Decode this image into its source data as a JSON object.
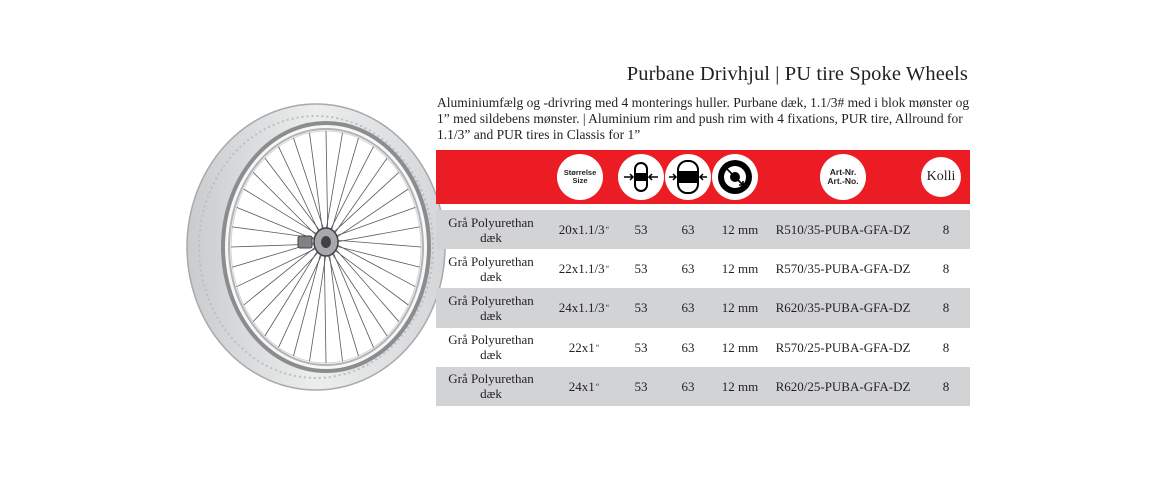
{
  "title": "Purbane Drivhjul | PU tire Spoke Wheels",
  "description": "Aluminiumfælg og -drivring med 4 monterings huller. Purbane dæk,  1.1/3# med i blok mønster og 1” med sildebens mønster. | Aluminium rim and push rim with 4 fixations, PUR tire, Allround for 1.1/3” and PUR tires in Classis for 1”",
  "header": {
    "size_label_1": "Størrelse",
    "size_label_2": "Size",
    "art_label_1": "Art-Nr.",
    "art_label_2": "Art.-No.",
    "kolli_label": "Kolli",
    "icons": [
      "tire-width-icon",
      "rim-width-icon",
      "hub-icon"
    ]
  },
  "rows": [
    {
      "desc_1": "Grå Polyurethan",
      "desc_2": "dæk",
      "size": "20x1.1/3",
      "size_mark": "“",
      "v1": "53",
      "v2": "63",
      "v3": "12 mm",
      "art": "R510/35-PUBA-GFA-DZ",
      "kolli": "8"
    },
    {
      "desc_1": "Grå Polyurethan",
      "desc_2": "dæk",
      "size": "22x1.1/3",
      "size_mark": "“",
      "v1": "53",
      "v2": "63",
      "v3": "12 mm",
      "art": "R570/35-PUBA-GFA-DZ",
      "kolli": "8"
    },
    {
      "desc_1": "Grå Polyurethan",
      "desc_2": "dæk",
      "size": "24x1.1/3",
      "size_mark": "“",
      "v1": "53",
      "v2": "63",
      "v3": "12 mm",
      "art": "R620/35-PUBA-GFA-DZ",
      "kolli": "8"
    },
    {
      "desc_1": "Grå Polyurethan",
      "desc_2": "dæk",
      "size": "22x1",
      "size_mark": "“",
      "v1": "53",
      "v2": "63",
      "v3": "12 mm",
      "art": "R570/25-PUBA-GFA-DZ",
      "kolli": "8"
    },
    {
      "desc_1": "Grå Polyurethan",
      "desc_2": "dæk",
      "size": "24x1",
      "size_mark": "“",
      "v1": "53",
      "v2": "63",
      "v3": "12 mm",
      "art": "R620/25-PUBA-GFA-DZ",
      "kolli": "8"
    }
  ],
  "colors": {
    "header_red": "#ec1c24",
    "row_shade": "#d1d3d4",
    "text": "#231f20"
  }
}
